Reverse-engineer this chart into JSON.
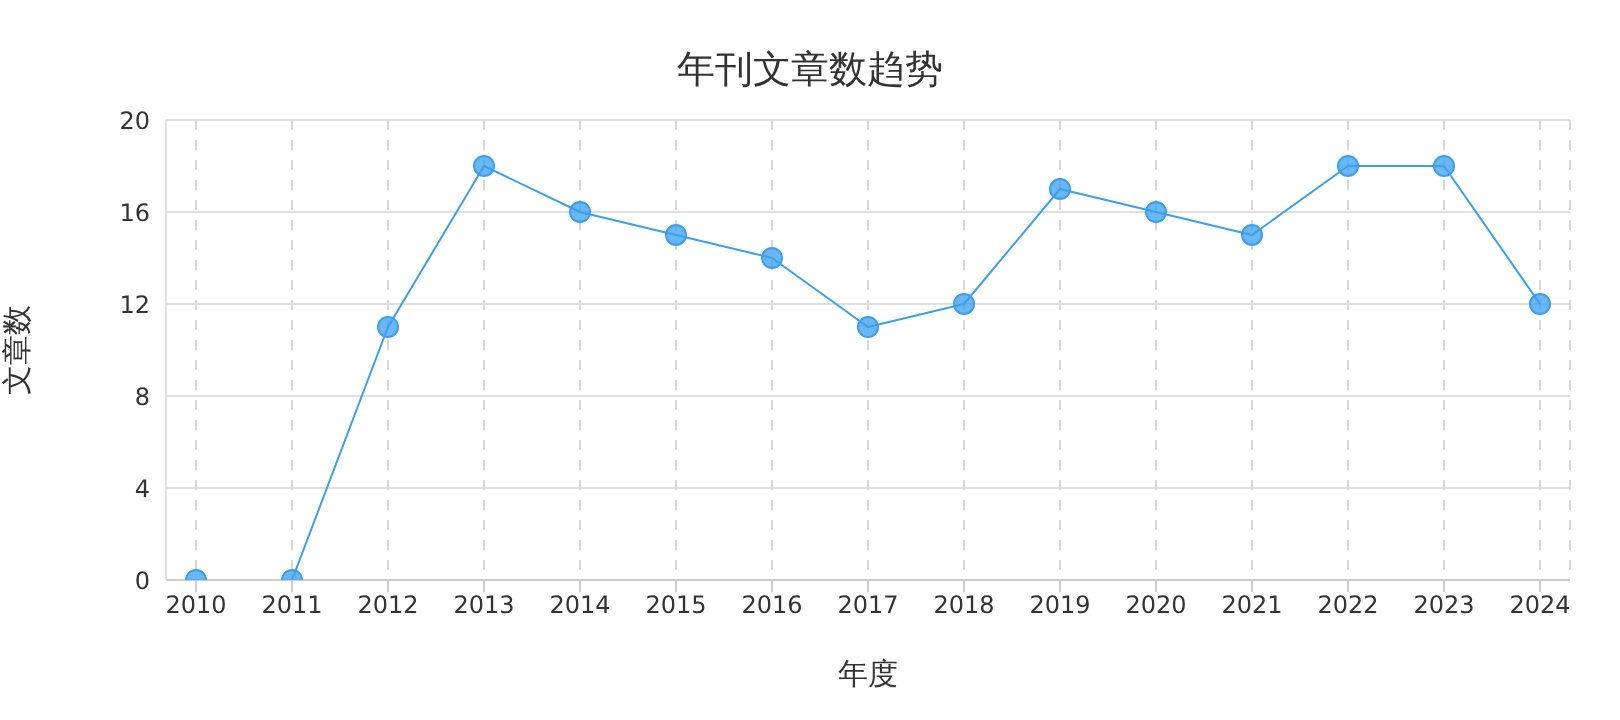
{
  "chart_data": {
    "type": "line",
    "title": "年刊文章数趋势",
    "xlabel": "年度",
    "ylabel": "文章数",
    "categories": [
      "2010",
      "2011",
      "2012",
      "2013",
      "2014",
      "2015",
      "2016",
      "2017",
      "2018",
      "2019",
      "2020",
      "2021",
      "2022",
      "2023",
      "2024"
    ],
    "series": [
      {
        "color": "#3a9ff0",
        "values": [
          0,
          0,
          11,
          18,
          16,
          15,
          14,
          11,
          12,
          17,
          16,
          15,
          18,
          18,
          12
        ]
      }
    ],
    "ylim": [
      0,
      20
    ],
    "yticks": [
      0,
      4,
      8,
      12,
      16,
      20
    ],
    "grid": true,
    "marker": "circle",
    "line_style": "solid",
    "legend": false
  }
}
